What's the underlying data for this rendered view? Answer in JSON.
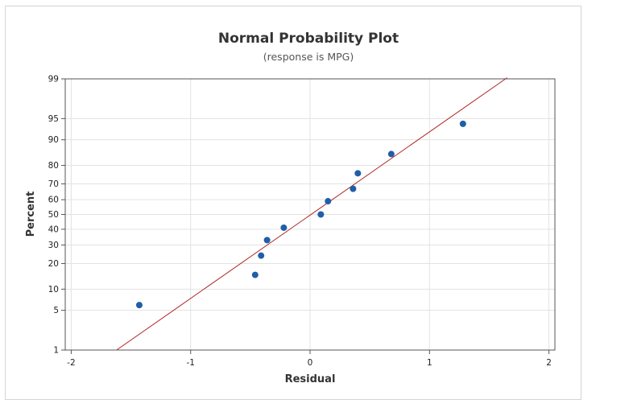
{
  "chart_data": {
    "type": "scatter",
    "title": "Normal Probability Plot",
    "subtitle": "(response is MPG)",
    "xlabel": "Residual",
    "ylabel": "Percent",
    "xlim": [
      -2.05,
      2.05
    ],
    "x_ticks": [
      -2,
      -1,
      0,
      1,
      2
    ],
    "y_ticks": [
      1,
      5,
      10,
      20,
      30,
      40,
      50,
      60,
      70,
      80,
      90,
      95,
      99
    ],
    "y_scale": "normal-probability",
    "grid": true,
    "points": [
      {
        "x": -1.43,
        "y": 6
      },
      {
        "x": -0.46,
        "y": 15
      },
      {
        "x": -0.41,
        "y": 24
      },
      {
        "x": -0.36,
        "y": 33
      },
      {
        "x": -0.22,
        "y": 41
      },
      {
        "x": 0.09,
        "y": 50
      },
      {
        "x": 0.15,
        "y": 59
      },
      {
        "x": 0.36,
        "y": 67
      },
      {
        "x": 0.4,
        "y": 76
      },
      {
        "x": 0.68,
        "y": 85
      },
      {
        "x": 1.28,
        "y": 94
      }
    ],
    "fit_line": {
      "x": [
        -1.62,
        1.65
      ],
      "y": [
        1,
        99.05
      ]
    },
    "colors": {
      "points": "#1f5fa8",
      "fit_line": "#b22222",
      "grid": "#e3e3e3",
      "axis": "#555555"
    }
  }
}
